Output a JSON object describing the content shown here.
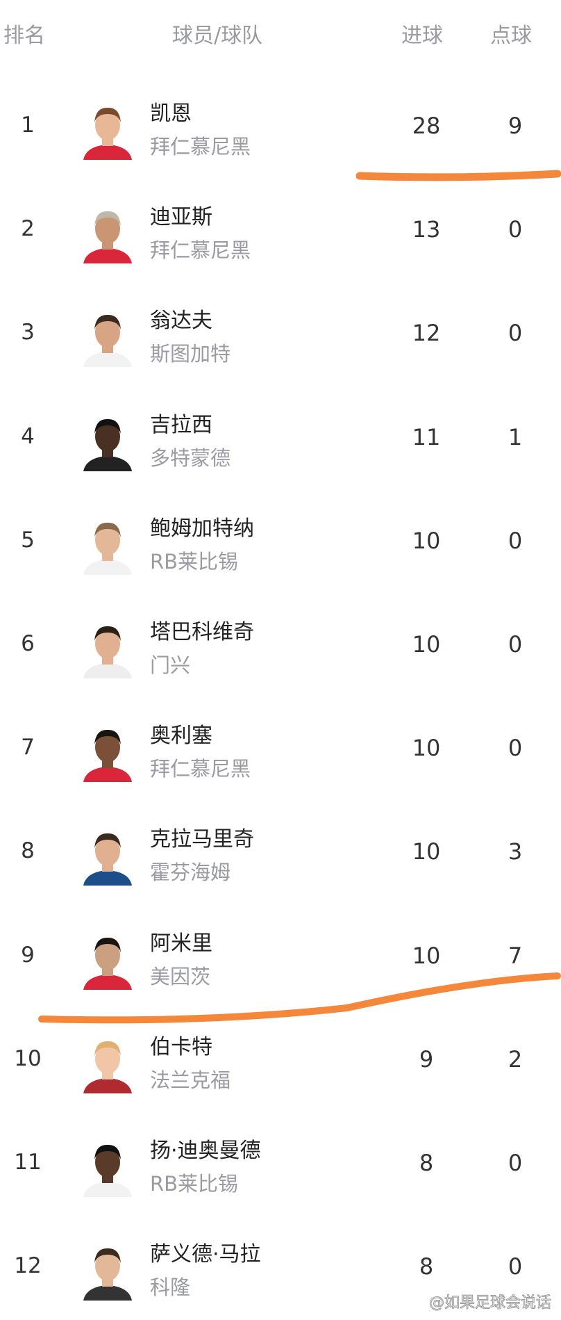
{
  "header": {
    "rank": "排名",
    "player_team": "球员/球队",
    "goals": "进球",
    "penalties": "点球"
  },
  "rows": [
    {
      "rank": "1",
      "name": "凯恩",
      "team": "拜仁慕尼黑",
      "goals": "28",
      "penalties": "9",
      "jersey": "#d9263a",
      "skin": "#e8b896",
      "hair": "#7a4a2a"
    },
    {
      "rank": "2",
      "name": "迪亚斯",
      "team": "拜仁慕尼黑",
      "goals": "13",
      "penalties": "0",
      "jersey": "#d9263a",
      "skin": "#c99572",
      "hair": "#bfb7a8"
    },
    {
      "rank": "3",
      "name": "翁达夫",
      "team": "斯图加特",
      "goals": "12",
      "penalties": "0",
      "jersey": "#f2f2f2",
      "skin": "#d8a584",
      "hair": "#3a2a20"
    },
    {
      "rank": "4",
      "name": "吉拉西",
      "team": "多特蒙德",
      "goals": "11",
      "penalties": "1",
      "jersey": "#222222",
      "skin": "#4a3022",
      "hair": "#111111"
    },
    {
      "rank": "5",
      "name": "鲍姆加特纳",
      "team": "RB莱比锡",
      "goals": "10",
      "penalties": "0",
      "jersey": "#f2f2f2",
      "skin": "#e3b898",
      "hair": "#8a6a4a"
    },
    {
      "rank": "6",
      "name": "塔巴科维奇",
      "team": "门兴",
      "goals": "10",
      "penalties": "0",
      "jersey": "#eeeeee",
      "skin": "#e0b090",
      "hair": "#2a2018"
    },
    {
      "rank": "7",
      "name": "奥利塞",
      "team": "拜仁慕尼黑",
      "goals": "10",
      "penalties": "0",
      "jersey": "#d9263a",
      "skin": "#7a5038",
      "hair": "#1a1410"
    },
    {
      "rank": "8",
      "name": "克拉马里奇",
      "team": "霍芬海姆",
      "goals": "10",
      "penalties": "3",
      "jersey": "#1c4f8a",
      "skin": "#e0b090",
      "hair": "#3a2a20"
    },
    {
      "rank": "9",
      "name": "阿米里",
      "team": "美因茨",
      "goals": "10",
      "penalties": "7",
      "jersey": "#d9263a",
      "skin": "#caa080",
      "hair": "#1a1410"
    },
    {
      "rank": "10",
      "name": "伯卡特",
      "team": "法兰克福",
      "goals": "9",
      "penalties": "2",
      "jersey": "#b02a30",
      "skin": "#f0c6a6",
      "hair": "#e0b070"
    },
    {
      "rank": "11",
      "name": "扬·迪奥曼德",
      "team": "RB莱比锡",
      "goals": "8",
      "penalties": "0",
      "jersey": "#f2f2f2",
      "skin": "#5a3a28",
      "hair": "#111111"
    },
    {
      "rank": "12",
      "name": "萨义德·马拉",
      "team": "科隆",
      "goals": "8",
      "penalties": "0",
      "jersey": "#333333",
      "skin": "#e3b898",
      "hair": "#3a2a20"
    }
  ],
  "annotation_color": "#f5873a",
  "watermark": "@如果足球会说话"
}
